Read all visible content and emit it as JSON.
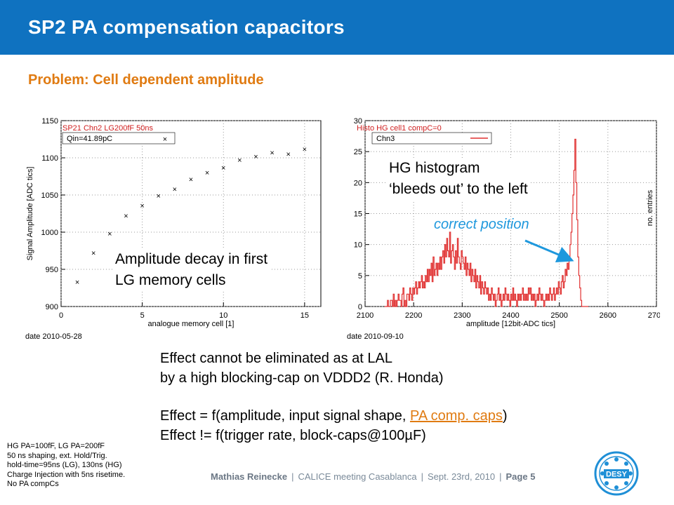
{
  "header": {
    "title": "SP2 PA compensation capacitors"
  },
  "subtitle": "Problem: Cell dependent amplitude",
  "colors": {
    "header_bg": "#0f72c0",
    "accent_orange": "#e07b12",
    "annotation_blue": "#1e98dd",
    "hist_red": "#e03030"
  },
  "annotations": {
    "left_line1": "Amplitude decay in first",
    "left_line2": "LG memory cells",
    "right_line1": "HG histogram",
    "right_line2": "‘bleeds out’ to the left",
    "correct_position": "correct position"
  },
  "effects": {
    "line1": "Effect cannot be eliminated as at LAL",
    "line2": "by a high blocking-cap on VDDD2 (R. Honda)",
    "line3_prefix": "Effect = f(amplitude, input signal shape, ",
    "line3_link": "PA comp. caps",
    "line3_suffix": ")",
    "line4": "Effect != f(trigger rate, block-caps@100µF)"
  },
  "notes": [
    "HG PA=100fF, LG PA=200fF",
    "50 ns shaping, ext. Hold/Trig.",
    "hold-time=95ns (LG), 130ns (HG)",
    "Charge Injection with 5ns risetime.",
    "No PA compCs"
  ],
  "footer": {
    "author": "Mathias Reinecke",
    "meeting": "CALICE meeting Casablanca",
    "date": "Sept. 23rd, 2010",
    "page": "Page 5",
    "separator": "|"
  },
  "logo": {
    "text": "DESY",
    "icon": "desy-logo-icon"
  },
  "chart_data": [
    {
      "type": "scatter",
      "title": "SP21 Chn2 LG200fF 50ns",
      "legend": "Qin=41.89pC",
      "xlabel": "analogue memory cell [1]",
      "ylabel": "Signal Amplitude [ADC tics]",
      "date": "date 2010-05-28",
      "xlim": [
        0,
        16
      ],
      "ylim": [
        900,
        1150
      ],
      "xticks": [
        0,
        5,
        10,
        15
      ],
      "yticks": [
        900,
        950,
        1000,
        1050,
        1100,
        1150
      ],
      "x": [
        1,
        2,
        3,
        4,
        5,
        6,
        7,
        8,
        9,
        10,
        11,
        12,
        13,
        14,
        15
      ],
      "y": [
        933,
        972,
        998,
        1022,
        1036,
        1049,
        1058,
        1071,
        1080,
        1087,
        1097,
        1102,
        1107,
        1105,
        1112
      ]
    },
    {
      "type": "bar",
      "title": "Histo HG cell1 compC=0",
      "legend": "Chn3",
      "xlabel": "amplitude [12bit-ADC tics]",
      "ylabel": "no. entries",
      "date": "date 2010-09-10",
      "xlim": [
        2100,
        2700
      ],
      "ylim": [
        0,
        30
      ],
      "xticks": [
        2100,
        2200,
        2300,
        2400,
        2500,
        2600,
        2700
      ],
      "yticks": [
        0,
        5,
        10,
        15,
        20,
        25,
        30
      ],
      "bin_start": 2140,
      "bin_width": 2,
      "counts": [
        0,
        0,
        0,
        1,
        0,
        0,
        1,
        1,
        0,
        2,
        0,
        1,
        0,
        1,
        2,
        1,
        1,
        0,
        2,
        3,
        0,
        1,
        0,
        2,
        2,
        1,
        3,
        2,
        1,
        3,
        2,
        3,
        4,
        2,
        3,
        4,
        3,
        4,
        5,
        3,
        4,
        3,
        5,
        4,
        6,
        4,
        6,
        5,
        7,
        4,
        8,
        5,
        6,
        7,
        5,
        7,
        6,
        8,
        6,
        8,
        9,
        7,
        10,
        8,
        11,
        9,
        8,
        12,
        7,
        9,
        10,
        8,
        6,
        9,
        7,
        11,
        8,
        7,
        6,
        9,
        8,
        7,
        6,
        8,
        5,
        7,
        6,
        5,
        7,
        4,
        6,
        5,
        4,
        6,
        3,
        5,
        4,
        3,
        5,
        2,
        4,
        3,
        2,
        4,
        3,
        2,
        3,
        1,
        2,
        1,
        3,
        2,
        1,
        2,
        0,
        1,
        2,
        3,
        1,
        2,
        0,
        1,
        2,
        1,
        3,
        2,
        1,
        2,
        1,
        0,
        2,
        1,
        3,
        1,
        2,
        1,
        0,
        2,
        1,
        2,
        1,
        2,
        3,
        1,
        2,
        1,
        2,
        1,
        3,
        2,
        3,
        1,
        2,
        1,
        2,
        0,
        1,
        2,
        1,
        3,
        2,
        1,
        2,
        1,
        0,
        1,
        2,
        1,
        2,
        1,
        3,
        2,
        1,
        2,
        3,
        1,
        2,
        3,
        2,
        4,
        3,
        2,
        4,
        5,
        3,
        4,
        6,
        5,
        7,
        6,
        8,
        10,
        12,
        15,
        18,
        22,
        27,
        20,
        14,
        8,
        5,
        3,
        1,
        0,
        0,
        0,
        0,
        0,
        0,
        0
      ]
    }
  ]
}
